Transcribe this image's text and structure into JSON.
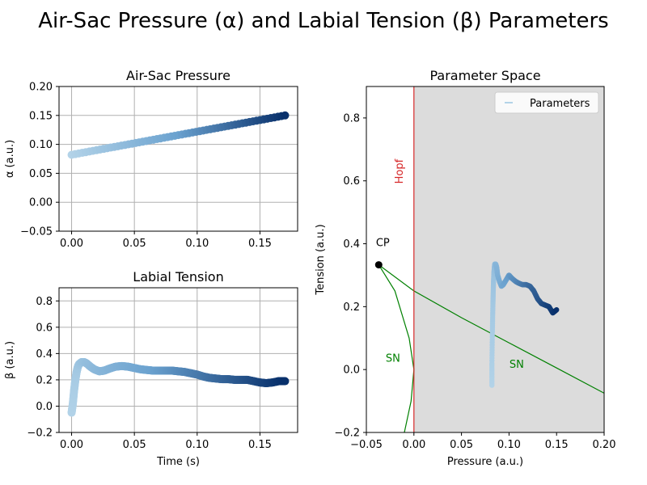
{
  "figure": {
    "suptitle": "Air-Sac Pressure (α) and Labial Tension (β) Parameters"
  },
  "colors": {
    "light": "#b3d3e8",
    "mid": "#6ba2cf",
    "dark": "#08306b",
    "grid": "#b0b0b0",
    "hopf": "#d62728",
    "sn": "#008000",
    "shade": "#dcdcdc"
  },
  "chart_data": [
    {
      "id": "pressure",
      "type": "scatter",
      "title": "Air-Sac Pressure",
      "xlabel": "",
      "ylabel": "α (a.u.)",
      "xlim": [
        -0.01,
        0.18
      ],
      "ylim": [
        -0.05,
        0.2
      ],
      "xticks": [
        "0.00",
        "0.05",
        "0.10",
        "0.15"
      ],
      "xtick_values": [
        0,
        0.05,
        0.1,
        0.15
      ],
      "yticks": [
        "−0.05",
        "0.00",
        "0.05",
        "0.10",
        "0.15",
        "0.20"
      ],
      "ytick_values": [
        -0.05,
        0,
        0.05,
        0.1,
        0.15,
        0.2
      ],
      "grid": true,
      "series": [
        {
          "x": [
            0.0,
            0.17
          ],
          "y": [
            0.082,
            0.15
          ]
        }
      ]
    },
    {
      "id": "tension",
      "type": "scatter",
      "title": "Labial Tension",
      "xlabel": "Time (s)",
      "ylabel": "β (a.u.)",
      "xlim": [
        -0.01,
        0.18
      ],
      "ylim": [
        -0.2,
        0.9
      ],
      "xticks": [
        "0.00",
        "0.05",
        "0.10",
        "0.15"
      ],
      "xtick_values": [
        0,
        0.05,
        0.1,
        0.15
      ],
      "yticks": [
        "−0.2",
        "0.0",
        "0.2",
        "0.4",
        "0.6",
        "0.8"
      ],
      "ytick_values": [
        -0.2,
        0,
        0.2,
        0.4,
        0.6,
        0.8
      ],
      "grid": true,
      "series": [
        {
          "x": [
            0.0,
            0.001,
            0.002,
            0.003,
            0.004,
            0.005,
            0.006,
            0.008,
            0.01,
            0.012,
            0.015,
            0.018,
            0.022,
            0.026,
            0.03,
            0.035,
            0.04,
            0.045,
            0.05,
            0.055,
            0.06,
            0.065,
            0.07,
            0.075,
            0.08,
            0.085,
            0.09,
            0.095,
            0.1,
            0.105,
            0.11,
            0.115,
            0.12,
            0.125,
            0.13,
            0.135,
            0.14,
            0.145,
            0.15,
            0.155,
            0.16,
            0.165,
            0.17
          ],
          "y": [
            -0.05,
            0.02,
            0.12,
            0.2,
            0.26,
            0.3,
            0.32,
            0.335,
            0.335,
            0.325,
            0.3,
            0.28,
            0.265,
            0.27,
            0.285,
            0.3,
            0.305,
            0.3,
            0.29,
            0.28,
            0.275,
            0.27,
            0.27,
            0.27,
            0.27,
            0.265,
            0.26,
            0.25,
            0.24,
            0.225,
            0.215,
            0.21,
            0.205,
            0.205,
            0.2,
            0.2,
            0.2,
            0.19,
            0.18,
            0.175,
            0.18,
            0.19,
            0.19
          ]
        }
      ]
    },
    {
      "id": "parameter-space",
      "type": "line",
      "title": "Parameter Space",
      "xlabel": "Pressure (a.u.)",
      "ylabel": "Tension (a.u.)",
      "xlim": [
        -0.05,
        0.2
      ],
      "ylim": [
        -0.2,
        0.9
      ],
      "xticks": [
        "−0.05",
        "0.00",
        "0.05",
        "0.10",
        "0.15",
        "0.20"
      ],
      "xtick_values": [
        -0.05,
        0,
        0.05,
        0.1,
        0.15,
        0.2
      ],
      "yticks": [
        "−0.2",
        "0.0",
        "0.2",
        "0.4",
        "0.6",
        "0.8"
      ],
      "ytick_values": [
        -0.2,
        0,
        0.2,
        0.4,
        0.6,
        0.8
      ],
      "grid": false,
      "legend": {
        "label": "Parameters",
        "placement": "top-right"
      },
      "annotations": {
        "hopf": "Hopf",
        "cp": "CP",
        "sn_left": "SN",
        "sn_right": "SN"
      },
      "hopf_x": 0.0,
      "cusp_point": {
        "x": -0.037,
        "y": 0.333
      },
      "sn_upper": {
        "x": [
          -0.037,
          0.0,
          0.05,
          0.1,
          0.15,
          0.2
        ],
        "y": [
          0.333,
          0.25,
          0.165,
          0.085,
          0.005,
          -0.075
        ]
      },
      "sn_lower": {
        "x": [
          -0.037,
          -0.02,
          -0.005,
          0.0,
          -0.003,
          -0.01
        ],
        "y": [
          0.333,
          0.25,
          0.1,
          0.0,
          -0.1,
          -0.2
        ]
      },
      "series": [
        {
          "name": "Parameters",
          "x": [
            0.082,
            0.082,
            0.0825,
            0.083,
            0.0835,
            0.084,
            0.0845,
            0.085,
            0.086,
            0.087,
            0.088,
            0.09,
            0.092,
            0.094,
            0.097,
            0.1,
            0.103,
            0.107,
            0.11,
            0.114,
            0.118,
            0.122,
            0.126,
            0.13,
            0.134,
            0.138,
            0.142,
            0.146,
            0.15
          ],
          "y": [
            -0.05,
            0.02,
            0.12,
            0.2,
            0.26,
            0.3,
            0.32,
            0.335,
            0.335,
            0.325,
            0.3,
            0.28,
            0.265,
            0.27,
            0.285,
            0.3,
            0.29,
            0.28,
            0.275,
            0.27,
            0.27,
            0.265,
            0.25,
            0.225,
            0.21,
            0.205,
            0.2,
            0.18,
            0.19
          ]
        }
      ]
    }
  ]
}
